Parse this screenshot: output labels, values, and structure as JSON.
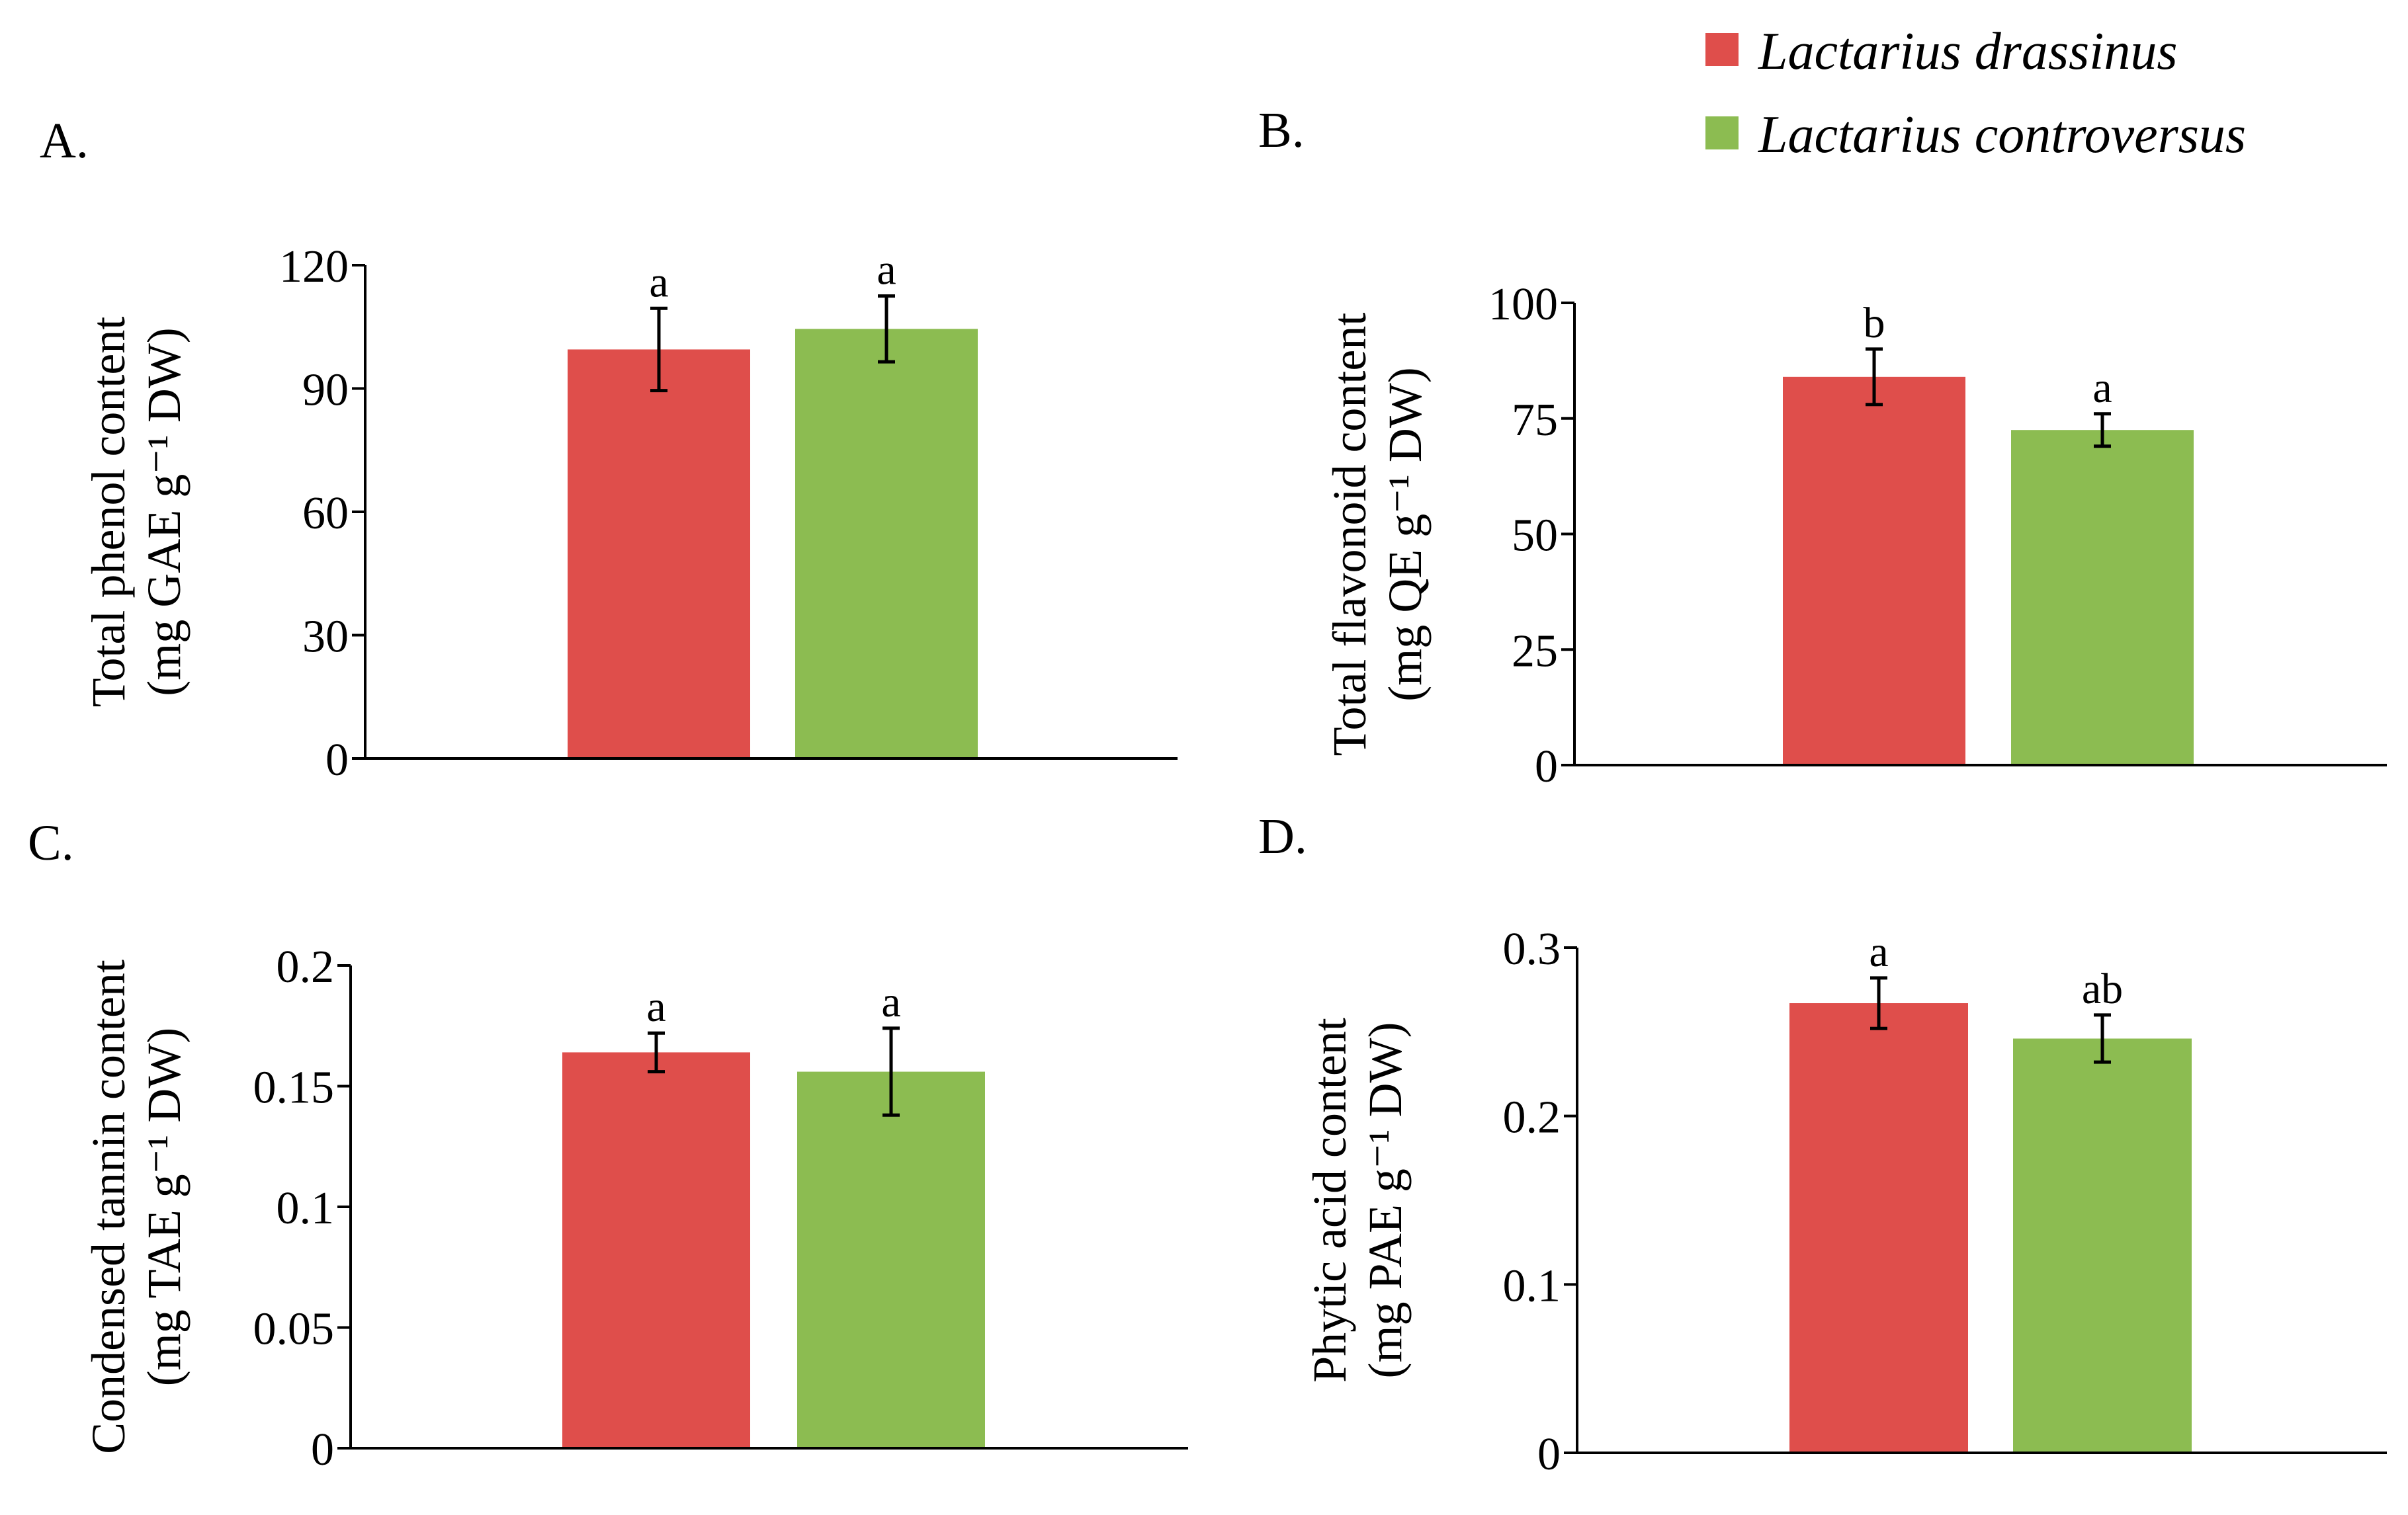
{
  "legend": [
    {
      "label": "Lactarius drassinus",
      "color": "#DF4E4B"
    },
    {
      "label": "Lactarius controversus",
      "color": "#8CBC51"
    }
  ],
  "chart_data": [
    {
      "panel": "A.",
      "type": "bar",
      "ylabel_line1": "Total phenol content",
      "ylabel_line2": "(mg GAE g⁻¹ DW)",
      "ylim": [
        0,
        120
      ],
      "yticks": [
        0,
        30,
        60,
        90,
        120
      ],
      "ytick_labels": [
        "0",
        "30",
        "60",
        "90",
        "120"
      ],
      "series": [
        {
          "name": "Lactarius drassinus",
          "value": 99.5,
          "error": 10,
          "letter": "a"
        },
        {
          "name": "Lactarius controversus",
          "value": 104.5,
          "error": 8,
          "letter": "a"
        }
      ]
    },
    {
      "panel": "B.",
      "type": "bar",
      "ylabel_line1": "Total flavonoid content",
      "ylabel_line2": "(mg QE g⁻¹ DW)",
      "ylim": [
        0,
        100
      ],
      "yticks": [
        0,
        25,
        50,
        75,
        100
      ],
      "ytick_labels": [
        "0",
        "25",
        "50",
        "75",
        "100"
      ],
      "series": [
        {
          "name": "Lactarius drassinus",
          "value": 84,
          "error": 6,
          "letter": "b"
        },
        {
          "name": "Lactarius controversus",
          "value": 72.5,
          "error": 3.5,
          "letter": "a"
        }
      ]
    },
    {
      "panel": "C.",
      "type": "bar",
      "ylabel_line1": "Condensed tannin content",
      "ylabel_line2": "(mg TAE g⁻¹ DW)",
      "ylim": [
        0,
        0.2
      ],
      "yticks": [
        0,
        0.05,
        0.1,
        0.15,
        0.2
      ],
      "ytick_labels": [
        "0",
        "0.05",
        "0.1",
        "0.15",
        "0.2"
      ],
      "series": [
        {
          "name": "Lactarius drassinus",
          "value": 0.164,
          "error": 0.008,
          "letter": "a"
        },
        {
          "name": "Lactarius controversus",
          "value": 0.156,
          "error": 0.018,
          "letter": "a"
        }
      ]
    },
    {
      "panel": "D.",
      "type": "bar",
      "ylabel_line1": "Phytic acid content",
      "ylabel_line2": "(mg PAE g⁻¹ DW)",
      "ylim": [
        0,
        0.3
      ],
      "yticks": [
        0,
        0.1,
        0.2,
        0.3
      ],
      "ytick_labels": [
        "0",
        "0.1",
        "0.2",
        "0.3"
      ],
      "series": [
        {
          "name": "Lactarius drassinus",
          "value": 0.267,
          "error": 0.015,
          "letter": "a"
        },
        {
          "name": "Lactarius controversus",
          "value": 0.246,
          "error": 0.014,
          "letter": "ab"
        }
      ]
    }
  ]
}
